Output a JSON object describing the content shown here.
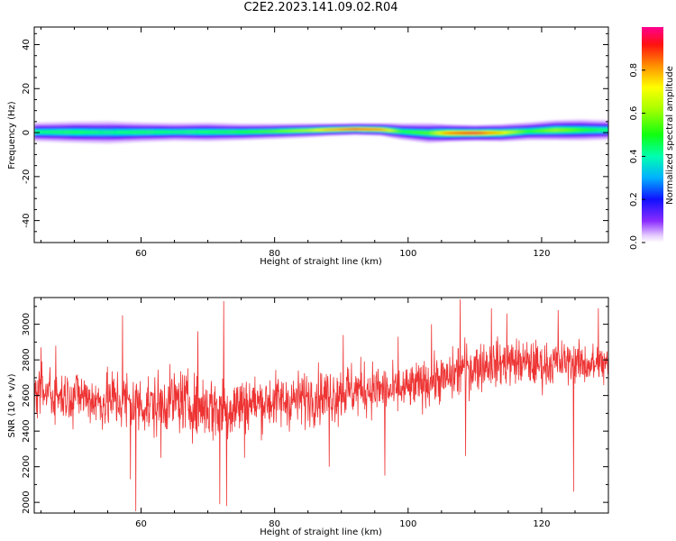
{
  "title": "C2E2.2023.141.09.02.R04",
  "chart_data": [
    {
      "type": "heatmap",
      "xlabel": "Height of straight line (km)",
      "ylabel": "Frequency (Hz)",
      "xlim": [
        44,
        130
      ],
      "ylim": [
        -50,
        48
      ],
      "x_ticks": [
        60,
        80,
        100,
        120
      ],
      "y_ticks": [
        -40,
        -20,
        0,
        20,
        40
      ],
      "x_tick_labels": [
        "60",
        "80",
        "100",
        "120"
      ],
      "y_tick_labels": [
        "-40",
        "-20",
        "0",
        "20",
        "40"
      ],
      "grid": false,
      "colorbar": {
        "label": "Normalized spectral amplitude",
        "range": [
          0,
          1
        ],
        "ticks": [
          0.0,
          0.2,
          0.4,
          0.6,
          0.8
        ],
        "tick_labels": [
          "0.0",
          "0.2",
          "0.4",
          "0.6",
          "0.8"
        ],
        "colormap": "rainbow"
      },
      "band": {
        "x": [
          44,
          50,
          55,
          60,
          65,
          70,
          75,
          80,
          85,
          88,
          92,
          96,
          99,
          103,
          106,
          110,
          114,
          118,
          122,
          126,
          130
        ],
        "center_hz": [
          0.3,
          0.2,
          0.1,
          0.2,
          0.3,
          0.3,
          0.3,
          0.6,
          1.0,
          1.3,
          1.6,
          1.4,
          0.5,
          -0.2,
          -0.2,
          -0.2,
          -0.1,
          0.6,
          1.1,
          1.2,
          1.2
        ],
        "halfwidth_hz": [
          2.5,
          2.8,
          3.0,
          2.6,
          2.4,
          2.5,
          2.2,
          2.0,
          1.8,
          1.6,
          1.5,
          1.6,
          2.2,
          2.6,
          2.2,
          2.0,
          2.2,
          2.4,
          2.6,
          2.8,
          2.6
        ],
        "peak_amplitude": [
          0.45,
          0.47,
          0.43,
          0.47,
          0.45,
          0.47,
          0.5,
          0.55,
          0.65,
          0.8,
          0.92,
          0.85,
          0.5,
          0.55,
          0.85,
          0.95,
          0.75,
          0.5,
          0.62,
          0.52,
          0.45
        ]
      }
    },
    {
      "type": "line",
      "xlabel": "Height of straight line (km)",
      "ylabel": "SNR (10 * v/v)",
      "xlim": [
        44,
        130
      ],
      "ylim": [
        1940,
        3150
      ],
      "x_ticks": [
        60,
        80,
        100,
        120
      ],
      "y_ticks": [
        2000,
        2200,
        2400,
        2600,
        2800,
        3000
      ],
      "x_tick_labels": [
        "60",
        "80",
        "100",
        "120"
      ],
      "y_tick_labels": [
        "2000",
        "2200",
        "2400",
        "2600",
        "2800",
        "3000"
      ],
      "grid": false,
      "color": "#ee3333",
      "series": [
        {
          "x": [
            44,
            46,
            48,
            50,
            52,
            54,
            56,
            58,
            60,
            62,
            64,
            66,
            68,
            70,
            72,
            74,
            76,
            78,
            80,
            82,
            84,
            86,
            88,
            90,
            92,
            94,
            96,
            98,
            100,
            102,
            104,
            106,
            108,
            110,
            112,
            114,
            116,
            118,
            120,
            122,
            124,
            126,
            128,
            130
          ],
          "y": [
            2620,
            2620,
            2600,
            2610,
            2590,
            2560,
            2580,
            2560,
            2550,
            2540,
            2570,
            2570,
            2540,
            2540,
            2520,
            2540,
            2560,
            2560,
            2570,
            2570,
            2580,
            2600,
            2600,
            2620,
            2630,
            2640,
            2630,
            2620,
            2640,
            2660,
            2690,
            2690,
            2750,
            2760,
            2780,
            2780,
            2790,
            2780,
            2770,
            2780,
            2790,
            2780,
            2770,
            2770
          ],
          "spread": [
            110,
            110,
            110,
            120,
            120,
            130,
            150,
            160,
            140,
            150,
            140,
            150,
            140,
            160,
            170,
            160,
            130,
            130,
            130,
            130,
            130,
            130,
            130,
            140,
            130,
            130,
            120,
            110,
            110,
            110,
            110,
            110,
            140,
            120,
            110,
            110,
            110,
            110,
            110,
            100,
            100,
            100,
            100,
            100
          ]
        }
      ],
      "extremes": [
        {
          "x": 45.0,
          "y": 2870
        },
        {
          "x": 47.2,
          "y": 2880
        },
        {
          "x": 49.8,
          "y": 2410
        },
        {
          "x": 57.2,
          "y": 3050
        },
        {
          "x": 58.4,
          "y": 2130
        },
        {
          "x": 59.2,
          "y": 1950
        },
        {
          "x": 63.0,
          "y": 2250
        },
        {
          "x": 68.5,
          "y": 2960
        },
        {
          "x": 71.8,
          "y": 1990
        },
        {
          "x": 72.4,
          "y": 3130
        },
        {
          "x": 72.8,
          "y": 1980
        },
        {
          "x": 75.5,
          "y": 2250
        },
        {
          "x": 88.2,
          "y": 2200
        },
        {
          "x": 90.3,
          "y": 2940
        },
        {
          "x": 96.5,
          "y": 2150
        },
        {
          "x": 98.5,
          "y": 2930
        },
        {
          "x": 103.5,
          "y": 3000
        },
        {
          "x": 107.8,
          "y": 3140
        },
        {
          "x": 108.6,
          "y": 2260
        },
        {
          "x": 112.5,
          "y": 3090
        },
        {
          "x": 114.8,
          "y": 3060
        },
        {
          "x": 122.5,
          "y": 3080
        },
        {
          "x": 124.8,
          "y": 2060
        },
        {
          "x": 128.5,
          "y": 3090
        }
      ]
    }
  ]
}
